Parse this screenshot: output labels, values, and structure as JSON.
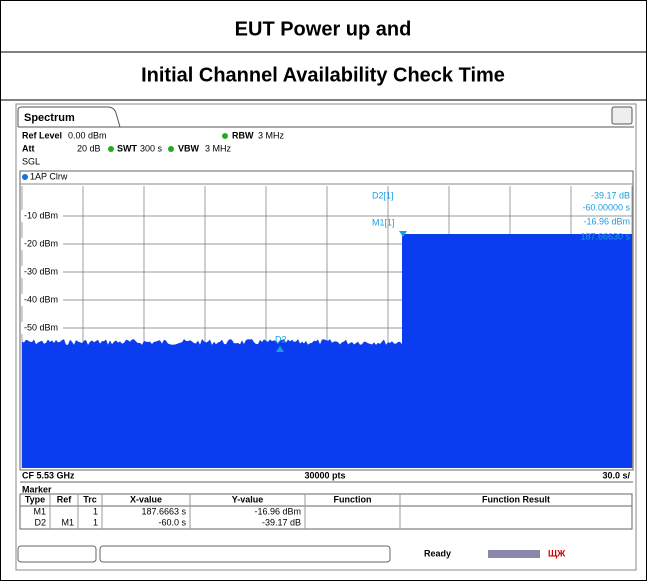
{
  "header": {
    "line1": "EUT Power up and",
    "line2": "Initial Channel Availability Check Time"
  },
  "tab": "Spectrum",
  "settings": {
    "ref_level_label": "Ref Level",
    "ref_level": "0.00 dBm",
    "att_label": "Att",
    "att": "20 dB",
    "swt_label": "SWT",
    "swt": "300 s",
    "rbw_label": "RBW",
    "rbw": "3 MHz",
    "vbw_label": "VBW",
    "vbw": "3 MHz",
    "mode": "SGL"
  },
  "trace_label": "1AP Clrw",
  "y_axis_labels": [
    "-10 dBm",
    "-20 dBm",
    "-30 dBm",
    "-40 dBm",
    "-50 dBm"
  ],
  "marker_readout": {
    "d2_label": "D2[1]",
    "d2_value": "-39.17 dB",
    "d2_x": "-60.00000 s",
    "m1_label": "M1[1]",
    "m1_value": "-16.96 dBm",
    "m1_x": "187.66630 s"
  },
  "trace_marker": "D2",
  "footer": {
    "cf": "CF 5.53 GHz",
    "points": "30000 pts",
    "span": "30.0 s/"
  },
  "marker_table": {
    "title": "Marker",
    "columns": [
      "Type",
      "Ref",
      "Trc",
      "X-value",
      "Y-value",
      "Function",
      "Function Result"
    ],
    "rows": [
      {
        "type": "M1",
        "trc": "1",
        "x": "187.6663 s",
        "y": "-16.96 dBm"
      },
      {
        "type": "D2",
        "ref": "M1",
        "trc": "1",
        "x": "-60.0 s",
        "y": "-39.17 dB"
      }
    ]
  },
  "status": "Ready"
}
